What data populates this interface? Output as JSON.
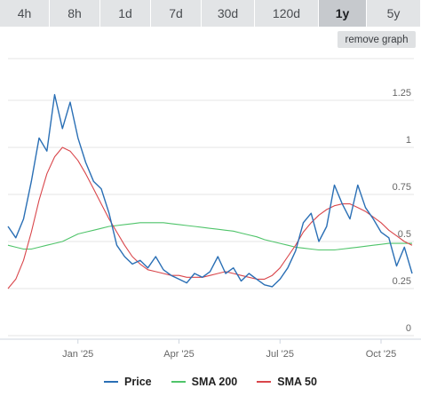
{
  "range_tabs": [
    "4h",
    "8h",
    "1d",
    "7d",
    "30d",
    "120d",
    "1y",
    "5y"
  ],
  "active_tab": "1y",
  "remove_graph_label": "remove graph",
  "colors": {
    "price": "#2a6fb5",
    "sma200": "#4fc46a",
    "sma50": "#d9464b",
    "grid": "#e6e6e6",
    "tab_bg": "#e2e4e6",
    "tab_active_bg": "#c6c9cd"
  },
  "legend": [
    {
      "label": "Price",
      "color": "#2a6fb5"
    },
    {
      "label": "SMA 200",
      "color": "#4fc46a"
    },
    {
      "label": "SMA 50",
      "color": "#d9464b"
    }
  ],
  "chart_data": {
    "type": "line",
    "ylim": [
      0,
      1.25
    ],
    "y_ticks": [
      "0",
      "0.25",
      "0.5",
      "0.75",
      "1",
      "1.25"
    ],
    "x_ticks": [
      "Jan '25",
      "Apr '25",
      "Jul '25",
      "Oct '25"
    ],
    "x": [
      "Nov 1 '24",
      "Nov 8",
      "Nov 15",
      "Nov 22",
      "Nov 29",
      "Dec 6",
      "Dec 13",
      "Dec 20",
      "Dec 27",
      "Jan 3 '25",
      "Jan 10",
      "Jan 17",
      "Jan 24",
      "Jan 31",
      "Feb 7",
      "Feb 14",
      "Feb 21",
      "Feb 28",
      "Mar 7",
      "Mar 14",
      "Mar 21",
      "Mar 28",
      "Apr 4",
      "Apr 11",
      "Apr 18",
      "Apr 25",
      "May 2",
      "May 9",
      "May 16",
      "May 23",
      "May 30",
      "Jun 6",
      "Jun 13",
      "Jun 20",
      "Jun 27",
      "Jul 4",
      "Jul 11",
      "Jul 18",
      "Jul 25",
      "Aug 1",
      "Aug 8",
      "Aug 15",
      "Aug 22",
      "Aug 29",
      "Sep 5",
      "Sep 12",
      "Sep 19",
      "Sep 26",
      "Oct 3",
      "Oct 10",
      "Oct 17",
      "Oct 24",
      "Oct 31"
    ],
    "series": [
      {
        "name": "Price",
        "values": [
          0.58,
          0.52,
          0.62,
          0.82,
          1.05,
          0.98,
          1.28,
          1.1,
          1.24,
          1.05,
          0.92,
          0.82,
          0.78,
          0.65,
          0.48,
          0.42,
          0.38,
          0.4,
          0.36,
          0.42,
          0.35,
          0.32,
          0.3,
          0.28,
          0.33,
          0.31,
          0.34,
          0.42,
          0.33,
          0.36,
          0.29,
          0.33,
          0.3,
          0.27,
          0.26,
          0.3,
          0.36,
          0.45,
          0.6,
          0.65,
          0.5,
          0.58,
          0.8,
          0.7,
          0.62,
          0.8,
          0.68,
          0.62,
          0.55,
          0.52,
          0.37,
          0.47,
          0.33
        ]
      },
      {
        "name": "SMA 200",
        "values": [
          0.48,
          0.47,
          0.46,
          0.46,
          0.47,
          0.48,
          0.49,
          0.5,
          0.52,
          0.54,
          0.55,
          0.56,
          0.57,
          0.58,
          0.585,
          0.59,
          0.595,
          0.6,
          0.6,
          0.6,
          0.6,
          0.595,
          0.59,
          0.585,
          0.58,
          0.575,
          0.57,
          0.565,
          0.56,
          0.555,
          0.545,
          0.535,
          0.525,
          0.51,
          0.5,
          0.49,
          0.48,
          0.47,
          0.465,
          0.46,
          0.455,
          0.455,
          0.455,
          0.46,
          0.465,
          0.47,
          0.475,
          0.48,
          0.485,
          0.49,
          0.49,
          0.49,
          0.49
        ]
      },
      {
        "name": "SMA 50",
        "values": [
          0.25,
          0.3,
          0.4,
          0.55,
          0.72,
          0.86,
          0.95,
          1.0,
          0.98,
          0.93,
          0.86,
          0.78,
          0.7,
          0.62,
          0.55,
          0.48,
          0.42,
          0.38,
          0.35,
          0.34,
          0.33,
          0.32,
          0.32,
          0.31,
          0.31,
          0.31,
          0.32,
          0.33,
          0.34,
          0.33,
          0.32,
          0.31,
          0.3,
          0.3,
          0.32,
          0.36,
          0.42,
          0.48,
          0.55,
          0.6,
          0.64,
          0.67,
          0.69,
          0.7,
          0.7,
          0.68,
          0.66,
          0.63,
          0.6,
          0.56,
          0.53,
          0.5,
          0.48
        ]
      }
    ],
    "grid": true
  }
}
